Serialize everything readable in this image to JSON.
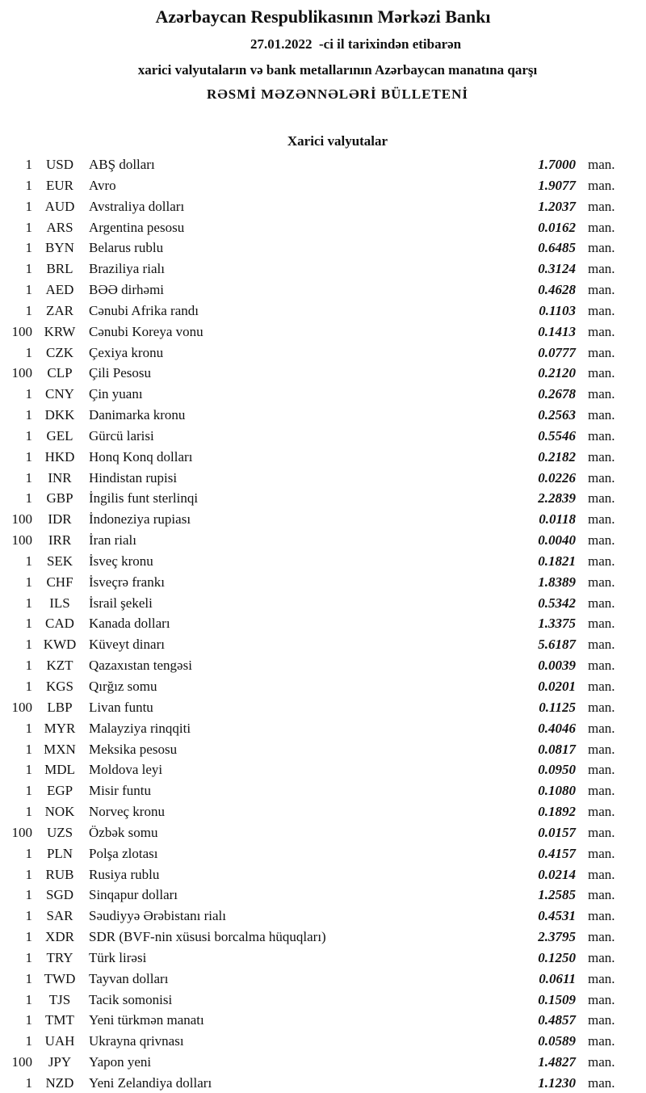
{
  "header": {
    "title": "Azərbaycan Respublikasının Mərkəzi Bankı",
    "date_line": "27.01.2022  -ci il tarixindən etibarən",
    "subtitle": "xarici valyutaların və bank metallarının Azərbaycan manatına qarşı",
    "heading": "RƏSMİ MƏZƏNNƏLƏRİ BÜLLETENİ"
  },
  "section": "Xarici valyutalar",
  "table": {
    "rows": [
      [
        "1",
        "USD",
        "ABŞ dolları",
        "1.7000",
        "man."
      ],
      [
        "1",
        "EUR",
        "Avro",
        "1.9077",
        "man."
      ],
      [
        "1",
        "AUD",
        "Avstraliya dolları",
        "1.2037",
        "man."
      ],
      [
        "1",
        "ARS",
        "Argentina pesosu",
        "0.0162",
        "man."
      ],
      [
        "1",
        "BYN",
        "Belarus rublu",
        "0.6485",
        "man."
      ],
      [
        "1",
        "BRL",
        "Braziliya rialı",
        "0.3124",
        "man."
      ],
      [
        "1",
        "AED",
        "BƏƏ dirhəmi",
        "0.4628",
        "man."
      ],
      [
        "1",
        "ZAR",
        "Cənubi Afrika randı",
        "0.1103",
        "man."
      ],
      [
        "100",
        "KRW",
        "Cənubi Koreya vonu",
        "0.1413",
        "man."
      ],
      [
        "1",
        "CZK",
        "Çexiya kronu",
        "0.0777",
        "man."
      ],
      [
        "100",
        "CLP",
        "Çili Pesosu",
        "0.2120",
        "man."
      ],
      [
        "1",
        "CNY",
        "Çin yuanı",
        "0.2678",
        "man."
      ],
      [
        "1",
        "DKK",
        "Danimarka kronu",
        "0.2563",
        "man."
      ],
      [
        "1",
        "GEL",
        "Gürcü larisi",
        "0.5546",
        "man."
      ],
      [
        "1",
        "HKD",
        "Honq Konq dolları",
        "0.2182",
        "man."
      ],
      [
        "1",
        "INR",
        "Hindistan rupisi",
        "0.0226",
        "man."
      ],
      [
        "1",
        "GBP",
        "İngilis funt sterlinqi",
        "2.2839",
        "man."
      ],
      [
        "100",
        "IDR",
        "İndoneziya rupiası",
        "0.0118",
        "man."
      ],
      [
        "100",
        "IRR",
        "İran rialı",
        "0.0040",
        "man."
      ],
      [
        "1",
        "SEK",
        "İsveç kronu",
        "0.1821",
        "man."
      ],
      [
        "1",
        "CHF",
        "İsveçrə frankı",
        "1.8389",
        "man."
      ],
      [
        "1",
        "ILS",
        "İsrail şekeli",
        "0.5342",
        "man."
      ],
      [
        "1",
        "CAD",
        "Kanada dolları",
        "1.3375",
        "man."
      ],
      [
        "1",
        "KWD",
        "Küveyt dinarı",
        "5.6187",
        "man."
      ],
      [
        "1",
        "KZT",
        "Qazaxıstan tengəsi",
        "0.0039",
        "man."
      ],
      [
        "1",
        "KGS",
        "Qırğız somu",
        "0.0201",
        "man."
      ],
      [
        "100",
        "LBP",
        "Livan funtu",
        "0.1125",
        "man."
      ],
      [
        "1",
        "MYR",
        "Malayziya rinqqiti",
        "0.4046",
        "man."
      ],
      [
        "1",
        "MXN",
        "Meksika pesosu",
        "0.0817",
        "man."
      ],
      [
        "1",
        "MDL",
        "Moldova leyi",
        "0.0950",
        "man."
      ],
      [
        "1",
        "EGP",
        "Misir funtu",
        "0.1080",
        "man."
      ],
      [
        "1",
        "NOK",
        "Norveç kronu",
        "0.1892",
        "man."
      ],
      [
        "100",
        "UZS",
        "Özbək somu",
        "0.0157",
        "man."
      ],
      [
        "1",
        "PLN",
        "Polşa zlotası",
        "0.4157",
        "man."
      ],
      [
        "1",
        "RUB",
        "Rusiya rublu",
        "0.0214",
        "man."
      ],
      [
        "1",
        "SGD",
        "Sinqapur dolları",
        "1.2585",
        "man."
      ],
      [
        "1",
        "SAR",
        "Səudiyyə Ərəbistanı rialı",
        "0.4531",
        "man."
      ],
      [
        "1",
        "XDR",
        "SDR (BVF-nin xüsusi borcalma hüquqları)",
        "2.3795",
        "man."
      ],
      [
        "1",
        "TRY",
        "Türk lirəsi",
        "0.1250",
        "man."
      ],
      [
        "1",
        "TWD",
        "Tayvan dolları",
        "0.0611",
        "man."
      ],
      [
        "1",
        "TJS",
        "Tacik somonisi",
        "0.1509",
        "man."
      ],
      [
        "1",
        "TMT",
        "Yeni türkmən manatı",
        "0.4857",
        "man."
      ],
      [
        "1",
        "UAH",
        "Ukrayna qrivnası",
        "0.0589",
        "man."
      ],
      [
        "100",
        "JPY",
        "Yapon yeni",
        "1.4827",
        "man."
      ],
      [
        "1",
        "NZD",
        "Yeni Zelandiya dolları",
        "1.1230",
        "man."
      ]
    ]
  }
}
